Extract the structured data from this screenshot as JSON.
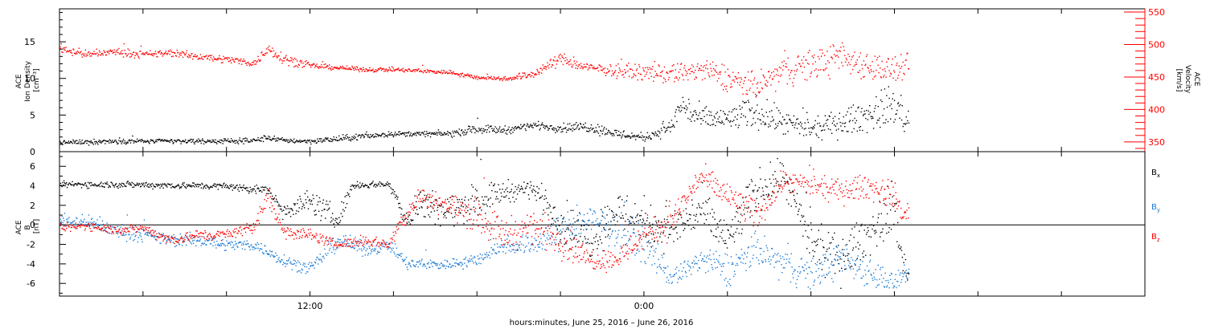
{
  "chart_data": [
    {
      "type": "scatter",
      "panel": "top",
      "ylabel_left": [
        "ACE",
        "Ion Density",
        "[cm⁻³]"
      ],
      "ylabel_right": [
        "ACE",
        "Velocity",
        "[km/s]"
      ],
      "ylim_left": [
        0,
        19.5
      ],
      "ylim_right": [
        335,
        555
      ],
      "left_ticks": [
        "0",
        "5",
        "10",
        "15"
      ],
      "left_tick_values": [
        0,
        5,
        10,
        15
      ],
      "right_ticks": [
        "350",
        "400",
        "450",
        "500",
        "550"
      ],
      "right_tick_values": [
        350,
        400,
        450,
        500,
        550
      ],
      "series": [
        {
          "axis": "left",
          "color": "#000000",
          "hours": [
            0,
            2,
            4,
            6,
            7,
            7.5,
            8,
            9,
            10,
            11,
            12,
            13,
            14,
            15,
            16,
            17,
            17.5,
            18,
            19,
            20,
            21,
            22,
            22.3,
            23,
            24,
            25,
            26,
            27,
            28,
            29,
            30,
            30.3
          ],
          "values": [
            1.3,
            1.5,
            1.5,
            1.5,
            1.6,
            2.0,
            1.6,
            1.5,
            1.8,
            2.2,
            2.5,
            2.5,
            2.5,
            3.2,
            3.0,
            3.7,
            3.5,
            3.3,
            3.5,
            2.5,
            2.0,
            3.5,
            6.5,
            4.5,
            4.5,
            5.5,
            4.0,
            3.0,
            4.0,
            5.0,
            6.5,
            4.5
          ],
          "spread": [
            0.3,
            0.3,
            0.3,
            0.3,
            0.3,
            0.4,
            0.3,
            0.3,
            0.4,
            0.4,
            0.3,
            0.3,
            0.4,
            0.5,
            0.5,
            0.4,
            0.5,
            0.5,
            0.7,
            0.6,
            0.5,
            1.0,
            2.0,
            1.5,
            1.5,
            2.0,
            1.5,
            1.2,
            1.5,
            2.0,
            2.5,
            1.5
          ]
        },
        {
          "axis": "right",
          "color": "#ff0000",
          "hours": [
            0,
            1,
            2,
            3,
            4,
            5,
            6,
            7,
            7.5,
            8,
            9,
            10,
            11,
            12,
            13,
            14,
            15,
            16,
            17,
            18,
            18.5,
            19,
            20,
            21,
            22,
            23,
            24,
            25,
            26,
            27,
            28,
            29,
            30,
            30.3
          ],
          "values": [
            495,
            485,
            490,
            485,
            488,
            482,
            478,
            472,
            495,
            480,
            468,
            465,
            462,
            462,
            460,
            458,
            450,
            448,
            455,
            480,
            470,
            465,
            460,
            458,
            455,
            462,
            450,
            435,
            460,
            470,
            480,
            470,
            460,
            465
          ],
          "spread": [
            6,
            5,
            5,
            5,
            5,
            5,
            5,
            5,
            8,
            8,
            4,
            3,
            3,
            3,
            3,
            3,
            3,
            3,
            6,
            8,
            8,
            6,
            8,
            10,
            14,
            16,
            18,
            18,
            20,
            22,
            22,
            20,
            20,
            18
          ]
        }
      ]
    },
    {
      "type": "scatter",
      "panel": "bottom",
      "ylabel_left": [
        "ACE",
        "B",
        "[nT]"
      ],
      "ylim": [
        -7.3,
        7.5
      ],
      "ticks": [
        "-6",
        "-4",
        "-2",
        "0",
        "2",
        "4",
        "6"
      ],
      "tick_values": [
        -6,
        -4,
        -2,
        0,
        2,
        4,
        6
      ],
      "zero_line": 0,
      "series": [
        {
          "name": "Bx",
          "label": "B",
          "sub": "x",
          "color": "#000000",
          "hours": [
            0,
            2,
            4,
            6,
            7.0,
            7.5,
            8,
            9,
            10,
            10.5,
            11.5,
            11.8,
            12.5,
            13,
            14,
            15,
            16,
            17,
            18,
            19,
            20,
            21,
            22,
            23,
            24,
            25,
            26,
            27,
            28,
            29,
            30,
            30.3
          ],
          "values": [
            4.2,
            4.2,
            4.1,
            4.0,
            3.7,
            3.6,
            1.5,
            2.5,
            0.5,
            4.1,
            4.2,
            4.3,
            0.5,
            2.5,
            1.5,
            2.5,
            3.5,
            3.8,
            0.5,
            -1.5,
            1.5,
            0.5,
            -0.5,
            1.5,
            -1.5,
            3.5,
            5.0,
            -2.0,
            -3.5,
            -1.0,
            2.0,
            -4.5
          ],
          "spread": [
            0.3,
            0.3,
            0.3,
            0.3,
            0.4,
            0.4,
            0.8,
            1.0,
            1.2,
            0.3,
            0.3,
            0.3,
            1.2,
            1.5,
            1.5,
            1.5,
            1.0,
            0.8,
            2.0,
            2.0,
            2.0,
            2.0,
            2.0,
            2.0,
            2.0,
            2.0,
            1.5,
            2.0,
            2.0,
            2.0,
            2.5,
            1.0
          ]
        },
        {
          "name": "By",
          "label": "B",
          "sub": "y",
          "color": "#1a7ad4",
          "hours": [
            0,
            1,
            2,
            3,
            4,
            5,
            6,
            7,
            8,
            9,
            10,
            11,
            11.8,
            12.5,
            13,
            14,
            15,
            16,
            17,
            18,
            19,
            20,
            21,
            22,
            23,
            24,
            25,
            26,
            27,
            28,
            29,
            30,
            30.3
          ],
          "values": [
            0.5,
            0.3,
            -0.5,
            -1.0,
            -1.5,
            -1.5,
            -2.0,
            -2.0,
            -3.5,
            -4.5,
            -1.5,
            -2.5,
            -2.0,
            -4.0,
            -4.0,
            -4.0,
            -3.5,
            -2.0,
            -2.0,
            -0.5,
            0.5,
            -0.5,
            -2.0,
            -5.5,
            -3.5,
            -4.5,
            -2.5,
            -4.0,
            -5.0,
            -3.5,
            -4.5,
            -6.0,
            -5.0
          ],
          "spread": [
            0.6,
            0.6,
            0.7,
            0.6,
            0.6,
            0.6,
            0.5,
            0.5,
            0.6,
            0.5,
            0.8,
            0.6,
            0.5,
            0.6,
            0.5,
            0.5,
            0.6,
            0.8,
            1.0,
            1.5,
            1.5,
            1.5,
            1.5,
            0.8,
            1.2,
            1.5,
            1.5,
            1.5,
            1.5,
            1.5,
            1.5,
            1.0,
            0.8
          ]
        },
        {
          "name": "Bz",
          "label": "B",
          "sub": "z",
          "color": "#ff0000",
          "hours": [
            0,
            1,
            2,
            3,
            4,
            5,
            6,
            7,
            7.5,
            8,
            9,
            10,
            11,
            11.8,
            12.5,
            13,
            14,
            15,
            16,
            17,
            18,
            19,
            20,
            21,
            22,
            23,
            24,
            25,
            26,
            27,
            28,
            29,
            30,
            30.3
          ],
          "values": [
            -0.3,
            0.0,
            -0.5,
            -0.3,
            -1.5,
            -1.0,
            -1.0,
            0.0,
            3.0,
            -0.5,
            -1.0,
            -2.0,
            -1.5,
            -2.0,
            1.5,
            3.0,
            2.0,
            1.0,
            -1.0,
            0.0,
            -1.5,
            -3.5,
            -3.5,
            -1.0,
            0.5,
            5.0,
            3.0,
            1.0,
            4.5,
            4.0,
            3.5,
            4.0,
            3.0,
            1.0
          ],
          "spread": [
            0.4,
            0.4,
            0.4,
            0.4,
            0.5,
            0.5,
            0.5,
            0.6,
            1.0,
            0.8,
            0.5,
            0.4,
            0.5,
            0.4,
            1.2,
            0.8,
            1.2,
            1.5,
            1.5,
            1.5,
            1.5,
            1.0,
            1.0,
            1.5,
            1.5,
            1.0,
            1.5,
            1.5,
            1.0,
            1.0,
            1.0,
            1.2,
            1.2,
            0.8
          ]
        }
      ]
    }
  ],
  "x_axis": {
    "title": "hours:minutes, June 25, 2016 – June 26, 2016",
    "start": "2016-06-25 03:00",
    "end": "2016-06-26 18:00",
    "data_end": "2016-06-26 09:30",
    "tick_interval_hours": 3,
    "labeled_ticks": [
      {
        "time": "2016-06-25 12:00",
        "label": "12:00"
      },
      {
        "time": "2016-06-26 00:00",
        "label": "0:00"
      }
    ]
  }
}
